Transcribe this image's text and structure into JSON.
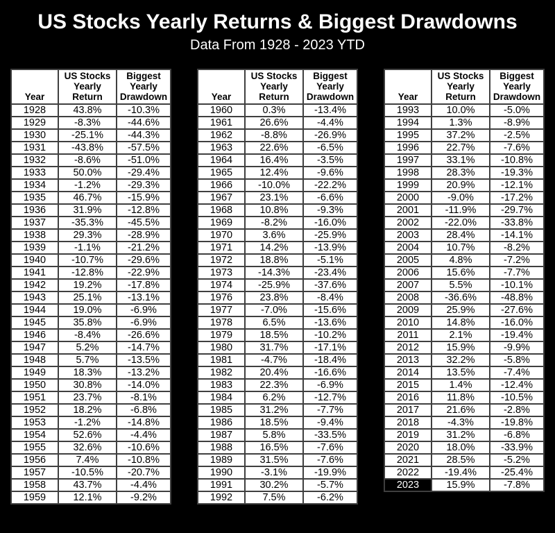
{
  "title": "US Stocks Yearly Returns & Biggest Drawdowns",
  "subtitle": "Data From 1928 - 2023 YTD",
  "colors": {
    "page_background": "#000000",
    "title_text": "#ffffff",
    "positive_cell": "#ddf2d4",
    "negative_cell": "#f5b9b9",
    "cell_background": "#ffffff",
    "border": "#3f3f3f",
    "highlight_year_background": "#000000",
    "highlight_year_text": "#ffffff"
  },
  "chart_data": {
    "type": "table",
    "title": "US Stocks Yearly Returns & Biggest Drawdowns",
    "subtitle": "Data From 1928 - 2023 YTD",
    "columns": [
      "Year",
      "US Stocks\nYearly\nReturn",
      "Biggest\nYearly\nDrawdown"
    ],
    "highlight_year": "2023",
    "tables": [
      {
        "rows": [
          [
            "1928",
            "43.8%",
            "-10.3%"
          ],
          [
            "1929",
            "-8.3%",
            "-44.6%"
          ],
          [
            "1930",
            "-25.1%",
            "-44.3%"
          ],
          [
            "1931",
            "-43.8%",
            "-57.5%"
          ],
          [
            "1932",
            "-8.6%",
            "-51.0%"
          ],
          [
            "1933",
            "50.0%",
            "-29.4%"
          ],
          [
            "1934",
            "-1.2%",
            "-29.3%"
          ],
          [
            "1935",
            "46.7%",
            "-15.9%"
          ],
          [
            "1936",
            "31.9%",
            "-12.8%"
          ],
          [
            "1937",
            "-35.3%",
            "-45.5%"
          ],
          [
            "1938",
            "29.3%",
            "-28.9%"
          ],
          [
            "1939",
            "-1.1%",
            "-21.2%"
          ],
          [
            "1940",
            "-10.7%",
            "-29.6%"
          ],
          [
            "1941",
            "-12.8%",
            "-22.9%"
          ],
          [
            "1942",
            "19.2%",
            "-17.8%"
          ],
          [
            "1943",
            "25.1%",
            "-13.1%"
          ],
          [
            "1944",
            "19.0%",
            "-6.9%"
          ],
          [
            "1945",
            "35.8%",
            "-6.9%"
          ],
          [
            "1946",
            "-8.4%",
            "-26.6%"
          ],
          [
            "1947",
            "5.2%",
            "-14.7%"
          ],
          [
            "1948",
            "5.7%",
            "-13.5%"
          ],
          [
            "1949",
            "18.3%",
            "-13.2%"
          ],
          [
            "1950",
            "30.8%",
            "-14.0%"
          ],
          [
            "1951",
            "23.7%",
            "-8.1%"
          ],
          [
            "1952",
            "18.2%",
            "-6.8%"
          ],
          [
            "1953",
            "-1.2%",
            "-14.8%"
          ],
          [
            "1954",
            "52.6%",
            "-4.4%"
          ],
          [
            "1955",
            "32.6%",
            "-10.6%"
          ],
          [
            "1956",
            "7.4%",
            "-10.8%"
          ],
          [
            "1957",
            "-10.5%",
            "-20.7%"
          ],
          [
            "1958",
            "43.7%",
            "-4.4%"
          ],
          [
            "1959",
            "12.1%",
            "-9.2%"
          ]
        ]
      },
      {
        "rows": [
          [
            "1960",
            "0.3%",
            "-13.4%"
          ],
          [
            "1961",
            "26.6%",
            "-4.4%"
          ],
          [
            "1962",
            "-8.8%",
            "-26.9%"
          ],
          [
            "1963",
            "22.6%",
            "-6.5%"
          ],
          [
            "1964",
            "16.4%",
            "-3.5%"
          ],
          [
            "1965",
            "12.4%",
            "-9.6%"
          ],
          [
            "1966",
            "-10.0%",
            "-22.2%"
          ],
          [
            "1967",
            "23.1%",
            "-6.6%"
          ],
          [
            "1968",
            "10.8%",
            "-9.3%"
          ],
          [
            "1969",
            "-8.2%",
            "-16.0%"
          ],
          [
            "1970",
            "3.6%",
            "-25.9%"
          ],
          [
            "1971",
            "14.2%",
            "-13.9%"
          ],
          [
            "1972",
            "18.8%",
            "-5.1%"
          ],
          [
            "1973",
            "-14.3%",
            "-23.4%"
          ],
          [
            "1974",
            "-25.9%",
            "-37.6%"
          ],
          [
            "1976",
            "23.8%",
            "-8.4%"
          ],
          [
            "1977",
            "-7.0%",
            "-15.6%"
          ],
          [
            "1978",
            "6.5%",
            "-13.6%"
          ],
          [
            "1979",
            "18.5%",
            "-10.2%"
          ],
          [
            "1980",
            "31.7%",
            "-17.1%"
          ],
          [
            "1981",
            "-4.7%",
            "-18.4%"
          ],
          [
            "1982",
            "20.4%",
            "-16.6%"
          ],
          [
            "1983",
            "22.3%",
            "-6.9%"
          ],
          [
            "1984",
            "6.2%",
            "-12.7%"
          ],
          [
            "1985",
            "31.2%",
            "-7.7%"
          ],
          [
            "1986",
            "18.5%",
            "-9.4%"
          ],
          [
            "1987",
            "5.8%",
            "-33.5%"
          ],
          [
            "1988",
            "16.5%",
            "-7.6%"
          ],
          [
            "1989",
            "31.5%",
            "-7.6%"
          ],
          [
            "1990",
            "-3.1%",
            "-19.9%"
          ],
          [
            "1991",
            "30.2%",
            "-5.7%"
          ],
          [
            "1992",
            "7.5%",
            "-6.2%"
          ]
        ]
      },
      {
        "rows": [
          [
            "1993",
            "10.0%",
            "-5.0%"
          ],
          [
            "1994",
            "1.3%",
            "-8.9%"
          ],
          [
            "1995",
            "37.2%",
            "-2.5%"
          ],
          [
            "1996",
            "22.7%",
            "-7.6%"
          ],
          [
            "1997",
            "33.1%",
            "-10.8%"
          ],
          [
            "1998",
            "28.3%",
            "-19.3%"
          ],
          [
            "1999",
            "20.9%",
            "-12.1%"
          ],
          [
            "2000",
            "-9.0%",
            "-17.2%"
          ],
          [
            "2001",
            "-11.9%",
            "-29.7%"
          ],
          [
            "2002",
            "-22.0%",
            "-33.8%"
          ],
          [
            "2003",
            "28.4%",
            "-14.1%"
          ],
          [
            "2004",
            "10.7%",
            "-8.2%"
          ],
          [
            "2005",
            "4.8%",
            "-7.2%"
          ],
          [
            "2006",
            "15.6%",
            "-7.7%"
          ],
          [
            "2007",
            "5.5%",
            "-10.1%"
          ],
          [
            "2008",
            "-36.6%",
            "-48.8%"
          ],
          [
            "2009",
            "25.9%",
            "-27.6%"
          ],
          [
            "2010",
            "14.8%",
            "-16.0%"
          ],
          [
            "2011",
            "2.1%",
            "-19.4%"
          ],
          [
            "2012",
            "15.9%",
            "-9.9%"
          ],
          [
            "2013",
            "32.2%",
            "-5.8%"
          ],
          [
            "2014",
            "13.5%",
            "-7.4%"
          ],
          [
            "2015",
            "1.4%",
            "-12.4%"
          ],
          [
            "2016",
            "11.8%",
            "-10.5%"
          ],
          [
            "2017",
            "21.6%",
            "-2.8%"
          ],
          [
            "2018",
            "-4.3%",
            "-19.8%"
          ],
          [
            "2019",
            "31.2%",
            "-6.8%"
          ],
          [
            "2020",
            "18.0%",
            "-33.9%"
          ],
          [
            "2021",
            "28.5%",
            "-5.2%"
          ],
          [
            "2022",
            "-19.4%",
            "-25.4%"
          ],
          [
            "2023",
            "15.9%",
            "-7.8%"
          ]
        ]
      }
    ]
  }
}
